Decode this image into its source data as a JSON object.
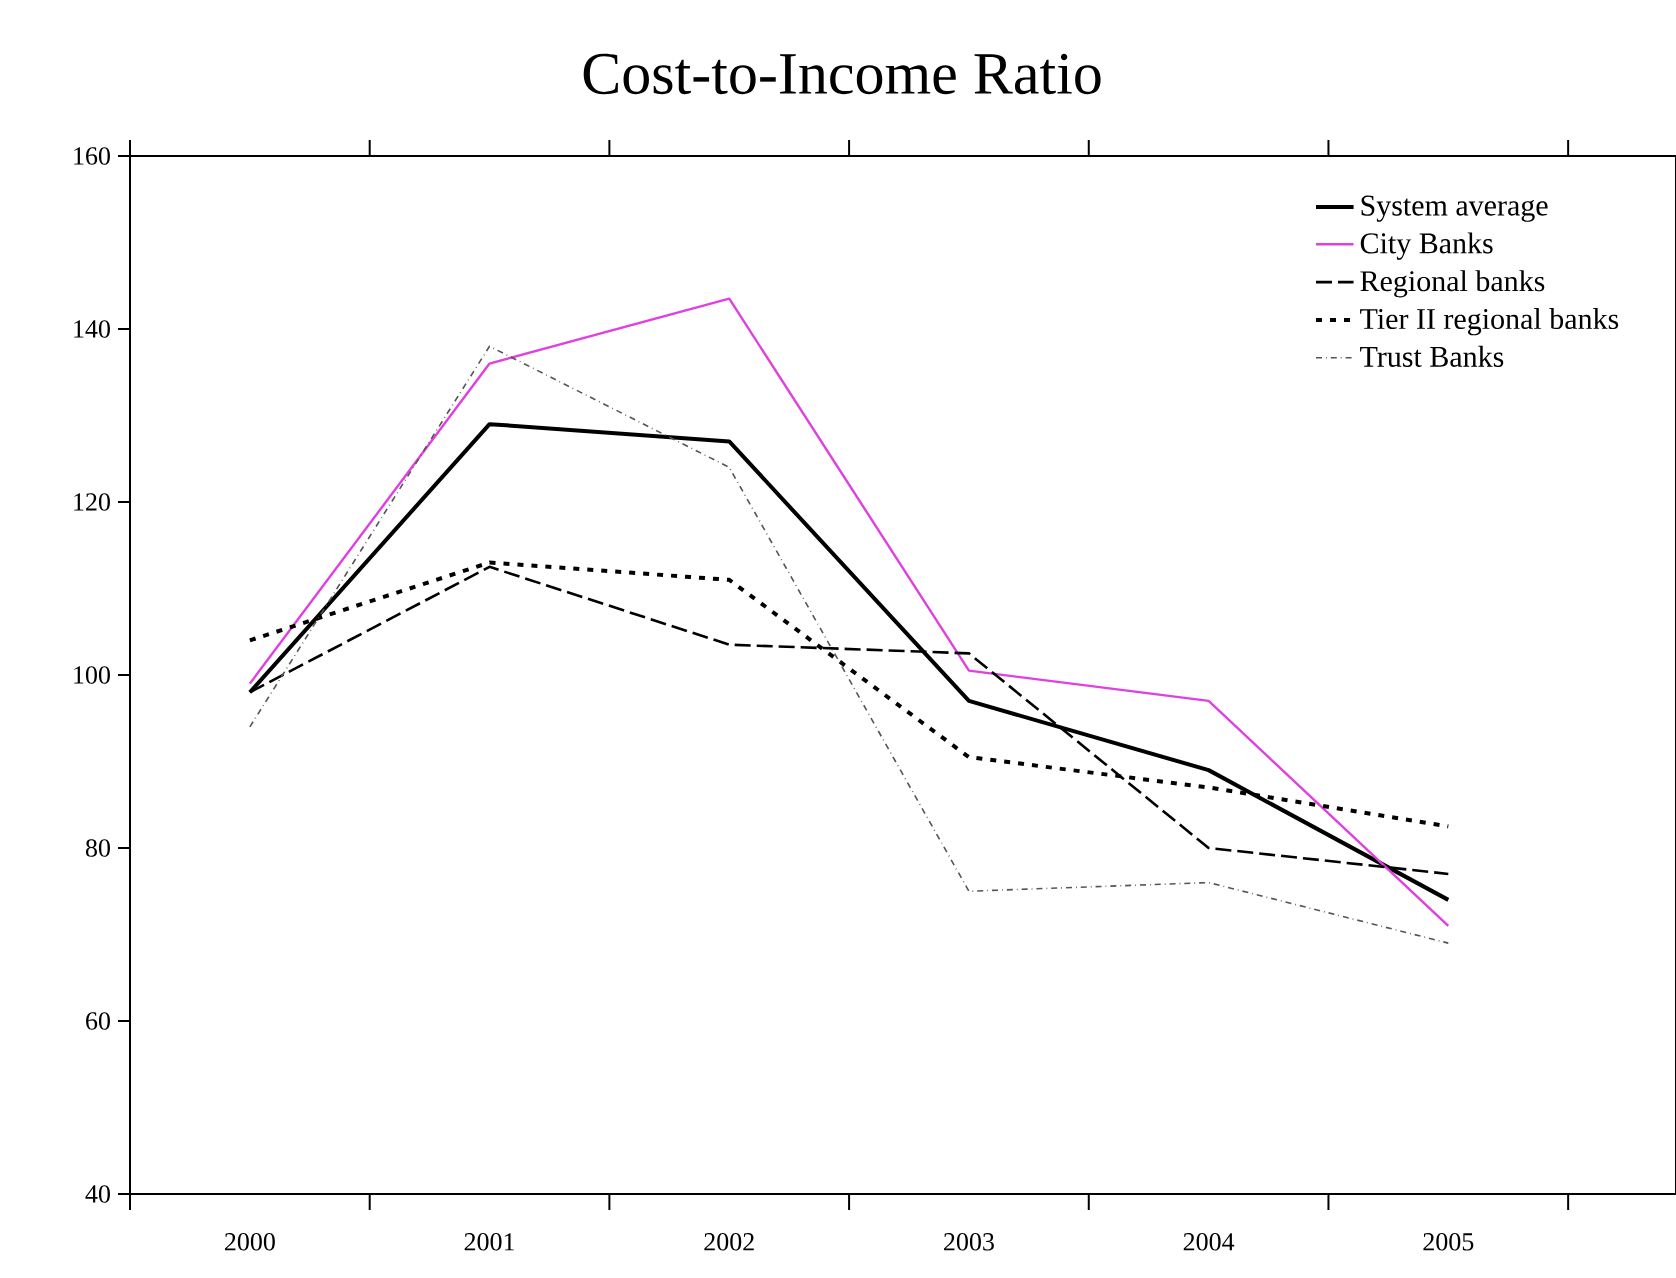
{
  "chart_data": {
    "type": "line",
    "title": "Cost-to-Income Ratio",
    "categories": [
      "2000",
      "2001",
      "2002",
      "2003",
      "2004",
      "2005"
    ],
    "series": [
      {
        "name": "System average",
        "color": "#000000",
        "line_style": "solid",
        "values": [
          98,
          129,
          127,
          97,
          89,
          74
        ]
      },
      {
        "name": "City Banks",
        "color": "#e040e0",
        "line_style": "solid",
        "values": [
          99,
          136,
          143.5,
          100.5,
          97,
          71
        ]
      },
      {
        "name": "Regional banks",
        "color": "#000000",
        "line_style": "dashed",
        "values": [
          98,
          112.5,
          103.5,
          102.5,
          80,
          77
        ]
      },
      {
        "name": "Tier II regional banks",
        "color": "#000000",
        "line_style": "dotted",
        "values": [
          104,
          113,
          111,
          90.5,
          87,
          82.5
        ]
      },
      {
        "name": "Trust Banks",
        "color": "#555555",
        "line_style": "dashdot",
        "values": [
          94,
          138,
          124,
          75,
          76,
          69
        ]
      }
    ],
    "ylim": [
      40,
      160
    ],
    "yticks": [
      40,
      60,
      80,
      100,
      120,
      140,
      160
    ],
    "grid": false,
    "legend": "top right",
    "marker": "none"
  }
}
